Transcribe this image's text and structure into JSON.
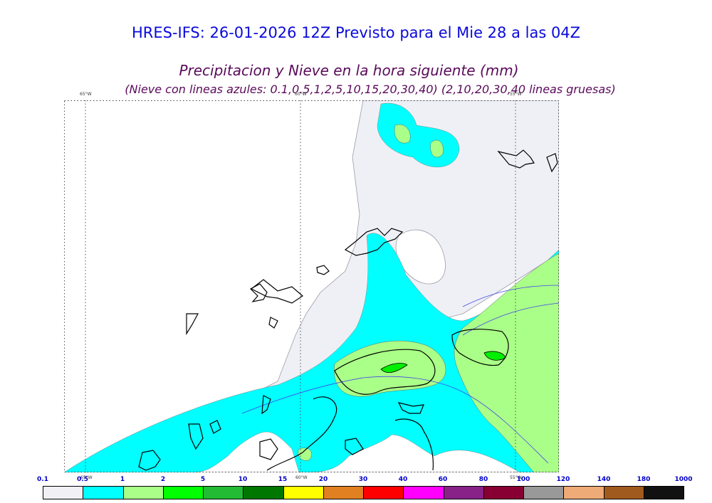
{
  "header": {
    "title": "HRES-IFS: 26-01-2026 12Z Previsto para el Mie 28 a las 04Z",
    "subtitle": "Precipitacion y Nieve en la hora siguiente (mm)",
    "note": "(Nieve con lineas azules: 0.1,0.5,1,2,5,10,15,20,30,40)  (2,10,20,30,40 lineas gruesas)"
  },
  "map": {
    "graticule_labels_top": [
      "65°W",
      "60°W",
      "55°W"
    ],
    "graticule_labels_bottom": [
      "65°W",
      "60°W",
      "55°W"
    ]
  },
  "legend": {
    "labels": [
      "0.1",
      "0.5",
      "1",
      "2",
      "5",
      "10",
      "15",
      "20",
      "30",
      "40",
      "60",
      "80",
      "100",
      "120",
      "140",
      "180",
      "1000"
    ],
    "colors": [
      "#f0f0f5",
      "#00ffff",
      "#aaff88",
      "#00ff00",
      "#22bb33",
      "#007700",
      "#ffff00",
      "#e08020",
      "#ff0000",
      "#ff00ff",
      "#882288",
      "#880033",
      "#999999",
      "#eeaa77",
      "#a05a1e",
      "#111111"
    ]
  }
}
